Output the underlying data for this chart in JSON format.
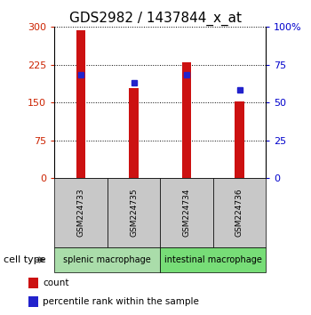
{
  "title": "GDS2982 / 1437844_x_at",
  "samples": [
    "GSM224733",
    "GSM224735",
    "GSM224734",
    "GSM224736"
  ],
  "counts": [
    293,
    179,
    229,
    152
  ],
  "percentiles": [
    68,
    63,
    68,
    58
  ],
  "left_ylim": [
    0,
    300
  ],
  "right_ylim": [
    0,
    100
  ],
  "left_yticks": [
    0,
    75,
    150,
    225,
    300
  ],
  "right_yticks": [
    0,
    25,
    50,
    75,
    100
  ],
  "right_yticklabels": [
    "0",
    "25",
    "50",
    "75",
    "100%"
  ],
  "bar_color": "#cc1111",
  "percentile_color": "#2222cc",
  "bar_width": 0.18,
  "cell_groups": [
    {
      "label": "splenic macrophage",
      "color": "#aaddaa"
    },
    {
      "label": "intestinal macrophage",
      "color": "#77dd77"
    }
  ],
  "cell_type_label": "cell type",
  "legend_items": [
    {
      "color": "#cc1111",
      "label": "count"
    },
    {
      "color": "#2222cc",
      "label": "percentile rank within the sample"
    }
  ],
  "title_fontsize": 11,
  "axis_label_color_left": "#cc2200",
  "axis_label_color_right": "#0000cc"
}
